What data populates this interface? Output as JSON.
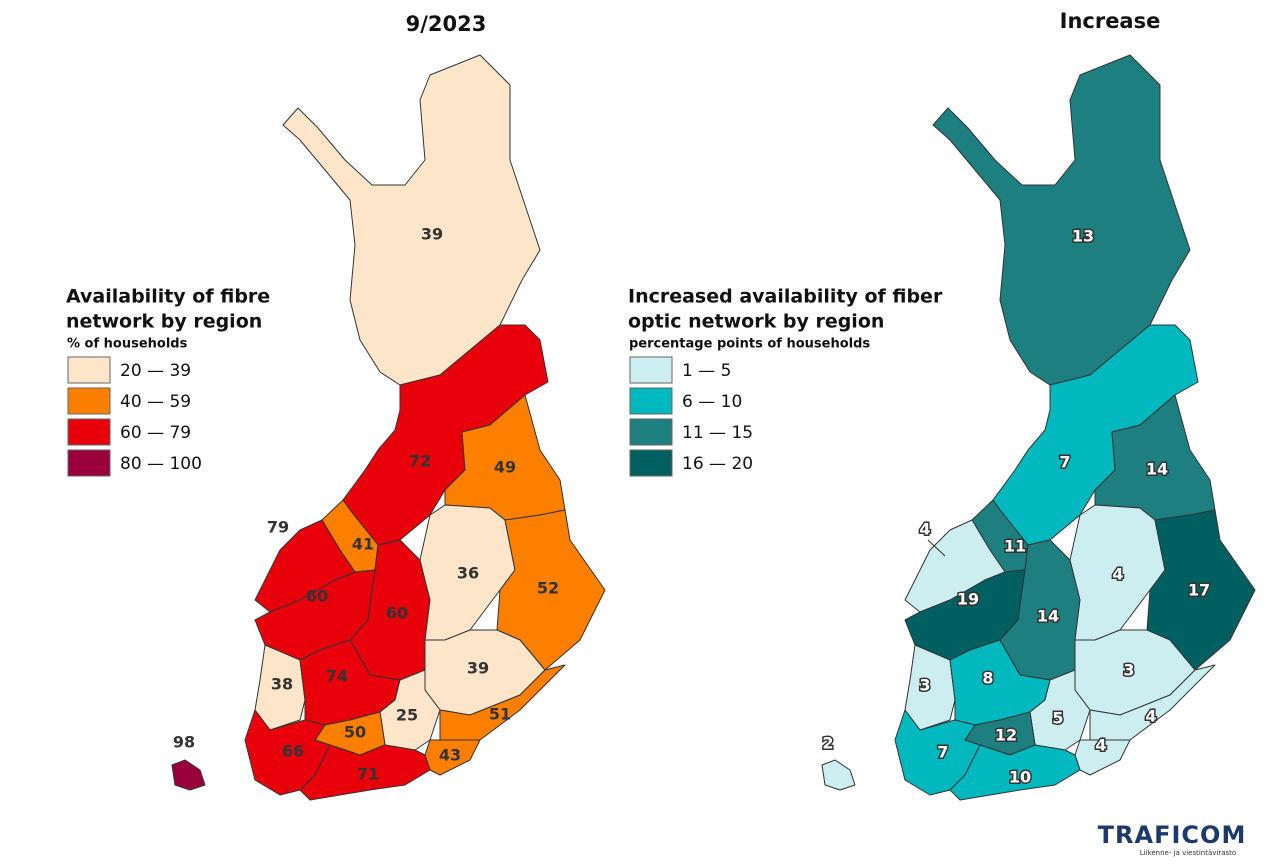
{
  "maps": [
    {
      "title": "9/2023",
      "legend": {
        "title_lines": [
          "Availability of fibre",
          "network by region"
        ],
        "subtitle": "% of households",
        "items": [
          {
            "label": "20 — 39",
            "color": "#fde5c9"
          },
          {
            "label": "40 — 59",
            "color": "#fd7f00"
          },
          {
            "label": "60 — 79",
            "color": "#e8000b"
          },
          {
            "label": "80 — 100",
            "color": "#9a0039"
          }
        ]
      },
      "regions": [
        {
          "value": 39,
          "color": "#fde5c9"
        },
        {
          "value": 72,
          "color": "#e8000b"
        },
        {
          "value": 49,
          "color": "#fd7f00"
        },
        {
          "value": 41,
          "color": "#fd7f00"
        },
        {
          "value": 79,
          "color": "#e8000b"
        },
        {
          "value": 60,
          "color": "#e8000b"
        },
        {
          "value": 60,
          "color": "#e8000b"
        },
        {
          "value": 36,
          "color": "#fde5c9"
        },
        {
          "value": 52,
          "color": "#fd7f00"
        },
        {
          "value": 39,
          "color": "#fde5c9"
        },
        {
          "value": 38,
          "color": "#fde5c9"
        },
        {
          "value": 74,
          "color": "#e8000b"
        },
        {
          "value": 25,
          "color": "#fde5c9"
        },
        {
          "value": 51,
          "color": "#fd7f00"
        },
        {
          "value": 50,
          "color": "#fd7f00"
        },
        {
          "value": 66,
          "color": "#e8000b"
        },
        {
          "value": 43,
          "color": "#fd7f00"
        },
        {
          "value": 71,
          "color": "#e8000b"
        },
        {
          "value": 98,
          "color": "#9a0039"
        }
      ]
    },
    {
      "title": "Increase",
      "legend": {
        "title_lines": [
          "Increased availability of fiber",
          "optic network by region"
        ],
        "subtitle": "percentage points of households",
        "items": [
          {
            "label": "1 — 5",
            "color": "#cdeef0"
          },
          {
            "label": "6 — 10",
            "color": "#00b8bd"
          },
          {
            "label": "11 — 15",
            "color": "#1d7f80"
          },
          {
            "label": "16 — 20",
            "color": "#005f60"
          }
        ]
      },
      "regions": [
        {
          "value": 13,
          "color": "#1d7f80"
        },
        {
          "value": 7,
          "color": "#00b8bd"
        },
        {
          "value": 14,
          "color": "#1d7f80"
        },
        {
          "value": 11,
          "color": "#1d7f80"
        },
        {
          "value": 4,
          "color": "#cdeef0"
        },
        {
          "value": 19,
          "color": "#005f60"
        },
        {
          "value": 14,
          "color": "#1d7f80"
        },
        {
          "value": 4,
          "color": "#cdeef0"
        },
        {
          "value": 17,
          "color": "#005f60"
        },
        {
          "value": 3,
          "color": "#cdeef0"
        },
        {
          "value": 3,
          "color": "#cdeef0"
        },
        {
          "value": 8,
          "color": "#00b8bd"
        },
        {
          "value": 5,
          "color": "#cdeef0"
        },
        {
          "value": 4,
          "color": "#cdeef0"
        },
        {
          "value": 12,
          "color": "#1d7f80"
        },
        {
          "value": 7,
          "color": "#00b8bd"
        },
        {
          "value": 4,
          "color": "#cdeef0"
        },
        {
          "value": 10,
          "color": "#00b8bd"
        },
        {
          "value": 2,
          "color": "#cdeef0"
        }
      ]
    }
  ],
  "logo": {
    "name": "TRAFICOM",
    "tagline": "Liikenne- ja viestintävirasto"
  }
}
